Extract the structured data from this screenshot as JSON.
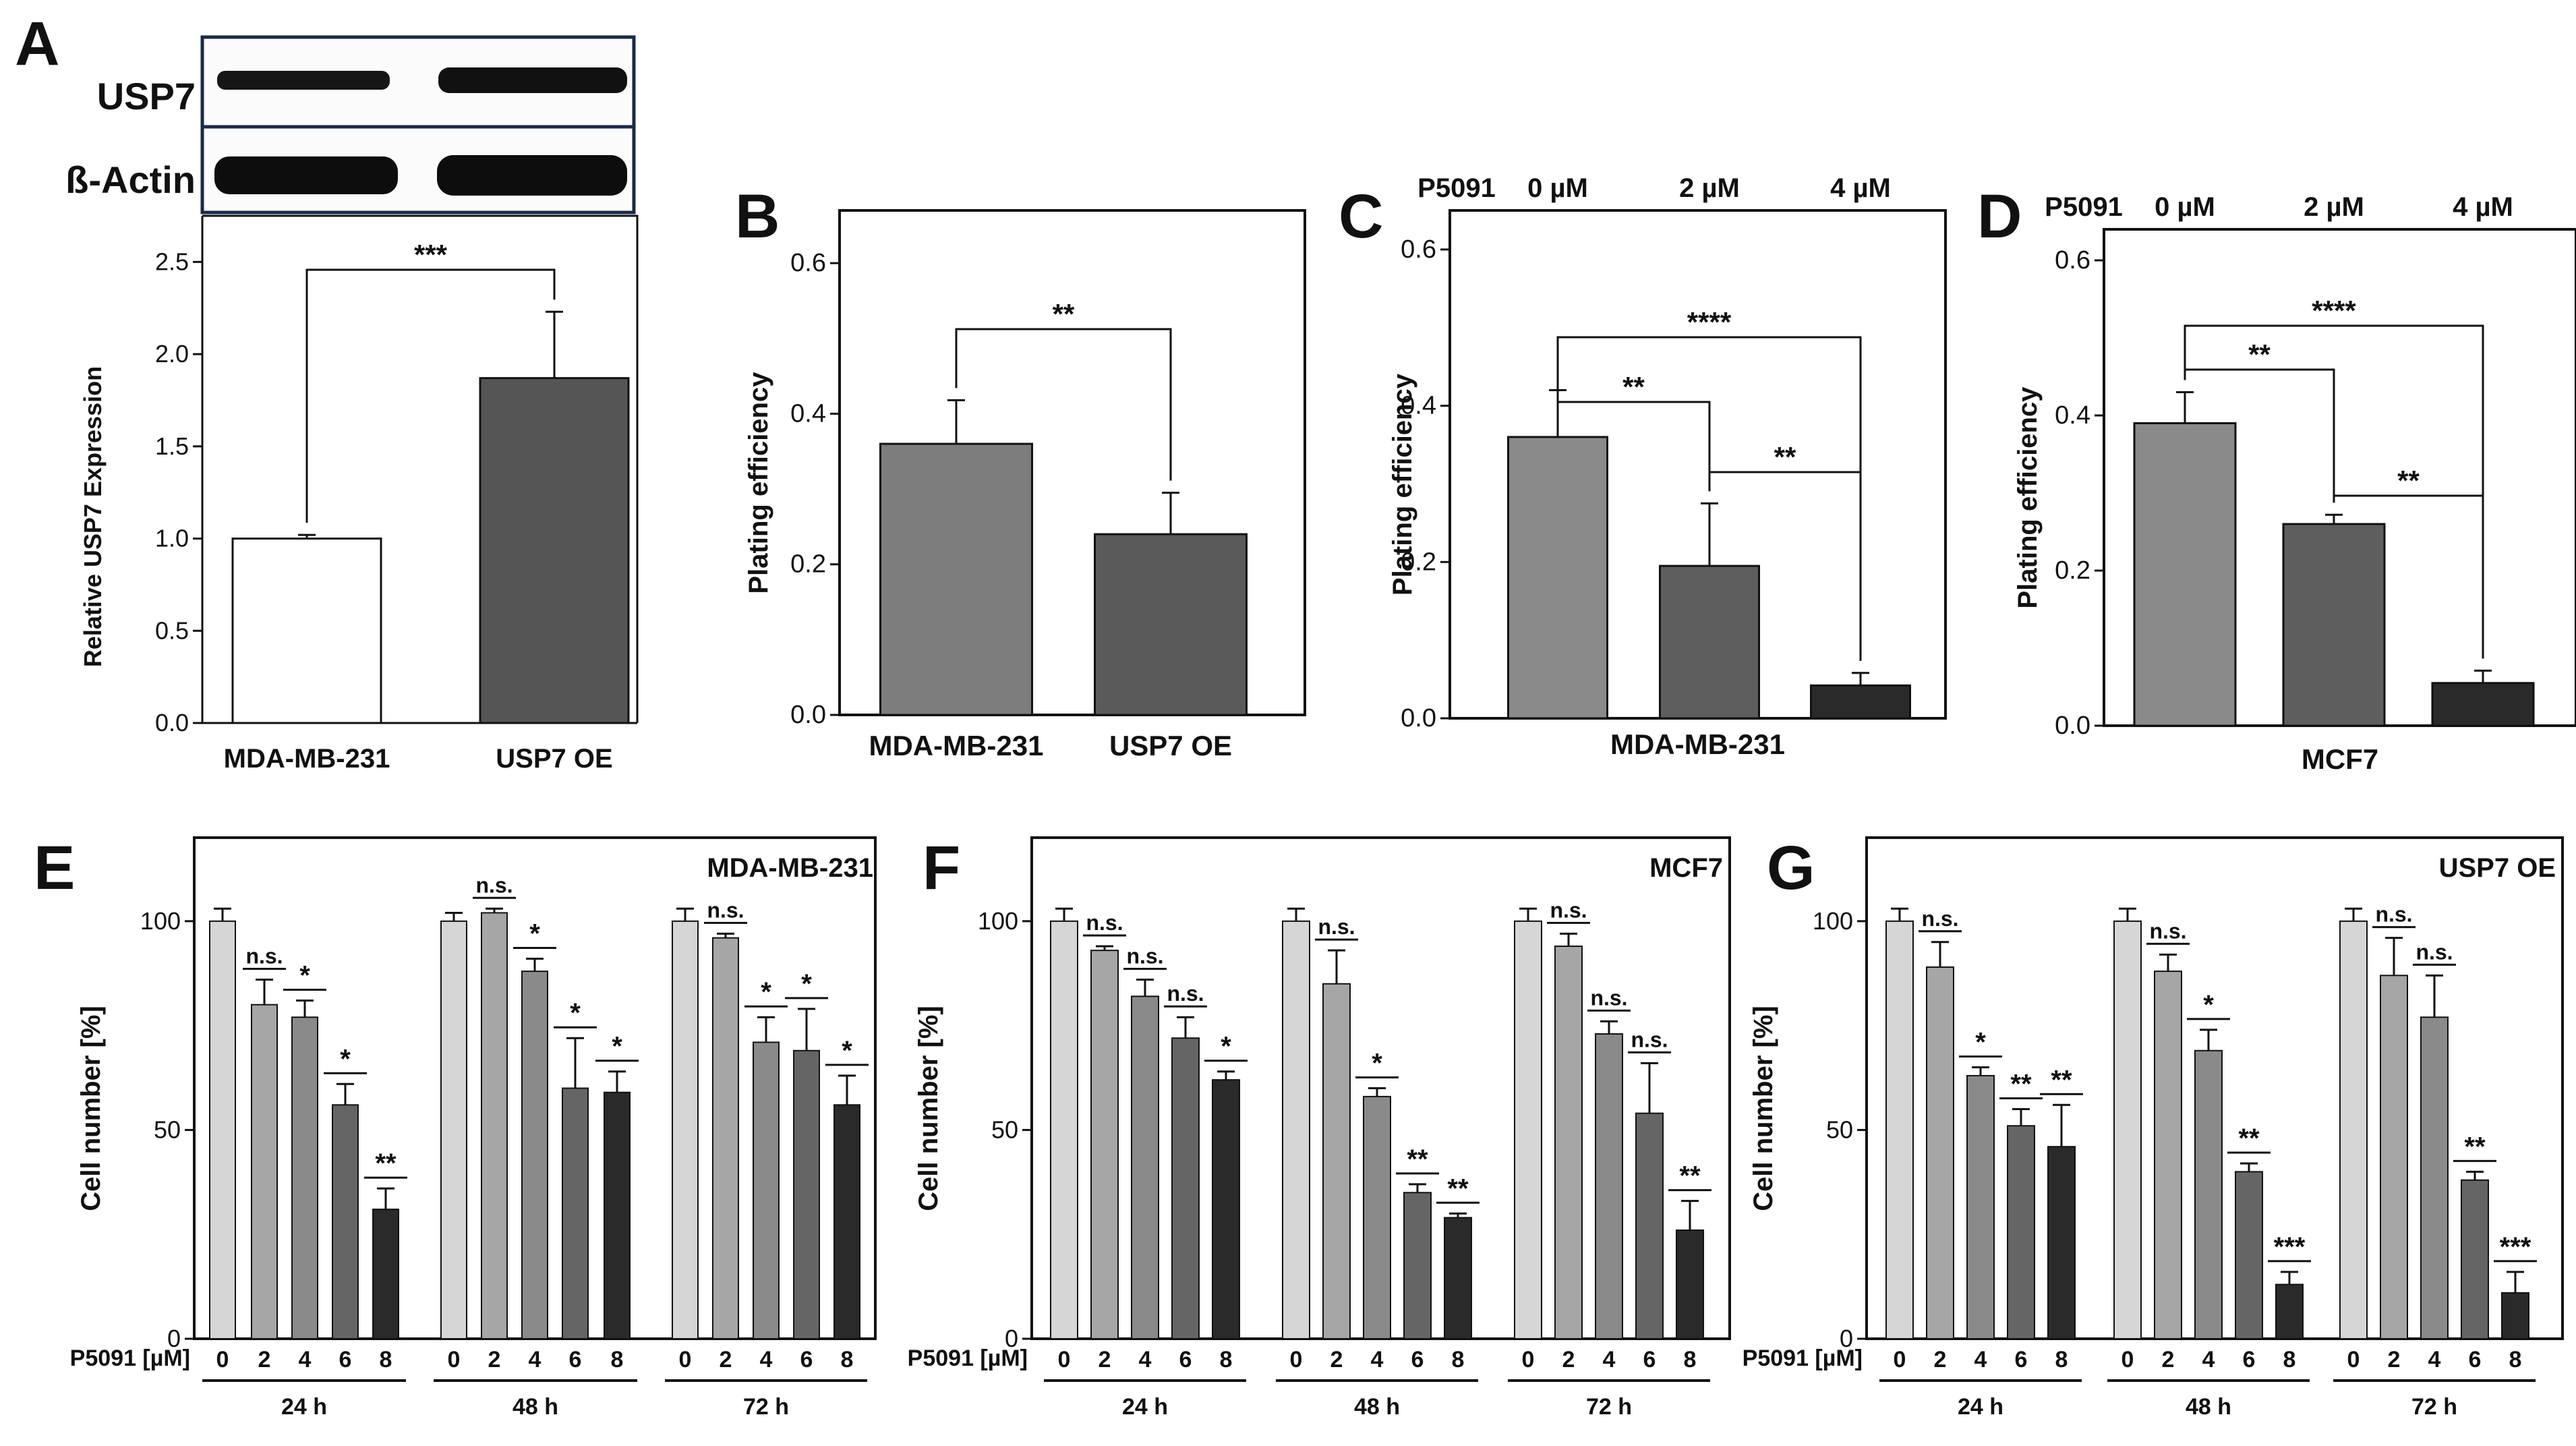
{
  "colors": {
    "bar_white": "#ffffff",
    "bar_dark": "#555555",
    "b_mda": "#7d7d7d",
    "b_oe": "#5a5a5a",
    "dose0": "#8a8a8a",
    "dose2": "#5e5e5e",
    "dose4": "#2a2a2a",
    "e0": "#d6d6d6",
    "e2": "#a6a6a6",
    "e4": "#8a8a8a",
    "e6": "#656565",
    "e8": "#2a2a2a",
    "ink": "#111111"
  },
  "blot": {
    "usp7_label": "USP7",
    "actin_label": "ß-Actin"
  },
  "chart_data": [
    {
      "panel": "A",
      "type": "bar",
      "categories": [
        "MDA-MB-231",
        "USP7 OE"
      ],
      "values": [
        1.0,
        1.87
      ],
      "errors": [
        0.02,
        0.36
      ],
      "ylabel": "Relative USP7 Expression",
      "xlabel": "",
      "ylim": [
        0,
        2.75
      ],
      "yticks": [
        0.0,
        0.5,
        1.0,
        1.5,
        2.0,
        2.5
      ],
      "tick_format": "0.0",
      "colors": [
        "bar_white",
        "bar_dark"
      ],
      "brackets": [
        {
          "from": 0,
          "to": 1,
          "label": "***"
        }
      ]
    },
    {
      "panel": "B",
      "type": "bar",
      "categories": [
        "MDA-MB-231",
        "USP7 OE"
      ],
      "values": [
        0.36,
        0.24
      ],
      "errors": [
        0.058,
        0.055
      ],
      "ylabel": "Plating efficiency",
      "xlabel": "",
      "ylim": [
        0,
        0.67
      ],
      "yticks": [
        0.0,
        0.2,
        0.4,
        0.6
      ],
      "tick_format": "0.0",
      "colors": [
        "b_mda",
        "b_oe"
      ],
      "brackets": [
        {
          "from": 0,
          "to": 1,
          "label": "**"
        }
      ]
    },
    {
      "panel": "C",
      "type": "bar",
      "categories": [
        "0 µM",
        "2 µM",
        "4 µM"
      ],
      "cat_prefix": "P5091",
      "values": [
        0.36,
        0.195,
        0.042
      ],
      "errors": [
        0.06,
        0.08,
        0.016
      ],
      "ylabel": "Plating efficiency",
      "xlabel": "MDA-MB-231",
      "ylim": [
        0,
        0.65
      ],
      "yticks": [
        0.0,
        0.2,
        0.4,
        0.6
      ],
      "tick_format": "0.0",
      "colors": [
        "dose0",
        "dose2",
        "dose4"
      ],
      "brackets": [
        {
          "from": 0,
          "to": 1,
          "label": "**"
        },
        {
          "from": 0,
          "to": 2,
          "label": "****"
        },
        {
          "from": 1,
          "to": 2,
          "label": "**"
        }
      ]
    },
    {
      "panel": "D",
      "type": "bar",
      "categories": [
        "0 µM",
        "2 µM",
        "4 µM"
      ],
      "cat_prefix": "P5091",
      "values": [
        0.39,
        0.26,
        0.055
      ],
      "errors": [
        0.04,
        0.012,
        0.016
      ],
      "ylabel": "Plating efficiency",
      "xlabel": "MCF7",
      "ylim": [
        0,
        0.64
      ],
      "yticks": [
        0.0,
        0.2,
        0.4,
        0.6
      ],
      "tick_format": "0.0",
      "colors": [
        "dose0",
        "dose2",
        "dose4"
      ],
      "brackets": [
        {
          "from": 0,
          "to": 1,
          "label": "**"
        },
        {
          "from": 0,
          "to": 2,
          "label": "****"
        },
        {
          "from": 1,
          "to": 2,
          "label": "**"
        }
      ]
    },
    {
      "panel": "E",
      "type": "bar",
      "title": "MDA-MB-231",
      "ylabel": "Cell number [%]",
      "xlabel": "P5091 [µM]",
      "ylim": [
        0,
        120
      ],
      "yticks": [
        0,
        50,
        100
      ],
      "doses": [
        "0",
        "2",
        "4",
        "6",
        "8"
      ],
      "colors": [
        "e0",
        "e2",
        "e4",
        "e6",
        "e8"
      ],
      "groups": [
        {
          "label": "24 h",
          "values": [
            100,
            80,
            77,
            56,
            31
          ],
          "errors": [
            3,
            6,
            4,
            5,
            5
          ],
          "sig": [
            "",
            "n.s.",
            "*",
            "*",
            "**"
          ]
        },
        {
          "label": "48 h",
          "values": [
            100,
            102,
            88,
            60,
            59
          ],
          "errors": [
            2,
            1,
            3,
            12,
            5
          ],
          "sig": [
            "",
            "n.s.",
            "*",
            "*",
            "*"
          ]
        },
        {
          "label": "72 h",
          "values": [
            100,
            96,
            71,
            69,
            56
          ],
          "errors": [
            3,
            1,
            6,
            10,
            7
          ],
          "sig": [
            "",
            "n.s.",
            "*",
            "*",
            "*"
          ]
        }
      ]
    },
    {
      "panel": "F",
      "type": "bar",
      "title": "MCF7",
      "ylabel": "Cell number [%]",
      "xlabel": "P5091 [µM]",
      "ylim": [
        0,
        120
      ],
      "yticks": [
        0,
        50,
        100
      ],
      "doses": [
        "0",
        "2",
        "4",
        "6",
        "8"
      ],
      "colors": [
        "e0",
        "e2",
        "e4",
        "e6",
        "e8"
      ],
      "groups": [
        {
          "label": "24 h",
          "values": [
            100,
            93,
            82,
            72,
            62
          ],
          "errors": [
            3,
            1,
            4,
            5,
            2
          ],
          "sig": [
            "",
            "n.s.",
            "n.s.",
            "n.s.",
            "*"
          ]
        },
        {
          "label": "48 h",
          "values": [
            100,
            85,
            58,
            35,
            29
          ],
          "errors": [
            3,
            8,
            2,
            2,
            1
          ],
          "sig": [
            "",
            "n.s.",
            "*",
            "**",
            "**"
          ]
        },
        {
          "label": "72 h",
          "values": [
            100,
            94,
            73,
            54,
            26
          ],
          "errors": [
            3,
            3,
            3,
            12,
            7
          ],
          "sig": [
            "",
            "n.s.",
            "n.s.",
            "n.s.",
            "**"
          ]
        }
      ]
    },
    {
      "panel": "G",
      "type": "bar",
      "title": "USP7 OE",
      "ylabel": "Cell number [%]",
      "xlabel": "P5091 [µM]",
      "ylim": [
        0,
        120
      ],
      "yticks": [
        0,
        50,
        100
      ],
      "doses": [
        "0",
        "2",
        "4",
        "6",
        "8"
      ],
      "colors": [
        "e0",
        "e2",
        "e4",
        "e6",
        "e8"
      ],
      "groups": [
        {
          "label": "24 h",
          "values": [
            100,
            89,
            63,
            51,
            46
          ],
          "errors": [
            3,
            6,
            2,
            4,
            10
          ],
          "sig": [
            "",
            "n.s.",
            "*",
            "**",
            "**"
          ]
        },
        {
          "label": "48 h",
          "values": [
            100,
            88,
            69,
            40,
            13
          ],
          "errors": [
            3,
            4,
            5,
            2,
            3
          ],
          "sig": [
            "",
            "n.s.",
            "*",
            "**",
            "***"
          ]
        },
        {
          "label": "72 h",
          "values": [
            100,
            87,
            77,
            38,
            11
          ],
          "errors": [
            3,
            9,
            10,
            2,
            5
          ],
          "sig": [
            "",
            "n.s.",
            "n.s.",
            "**",
            "***"
          ]
        }
      ]
    }
  ]
}
